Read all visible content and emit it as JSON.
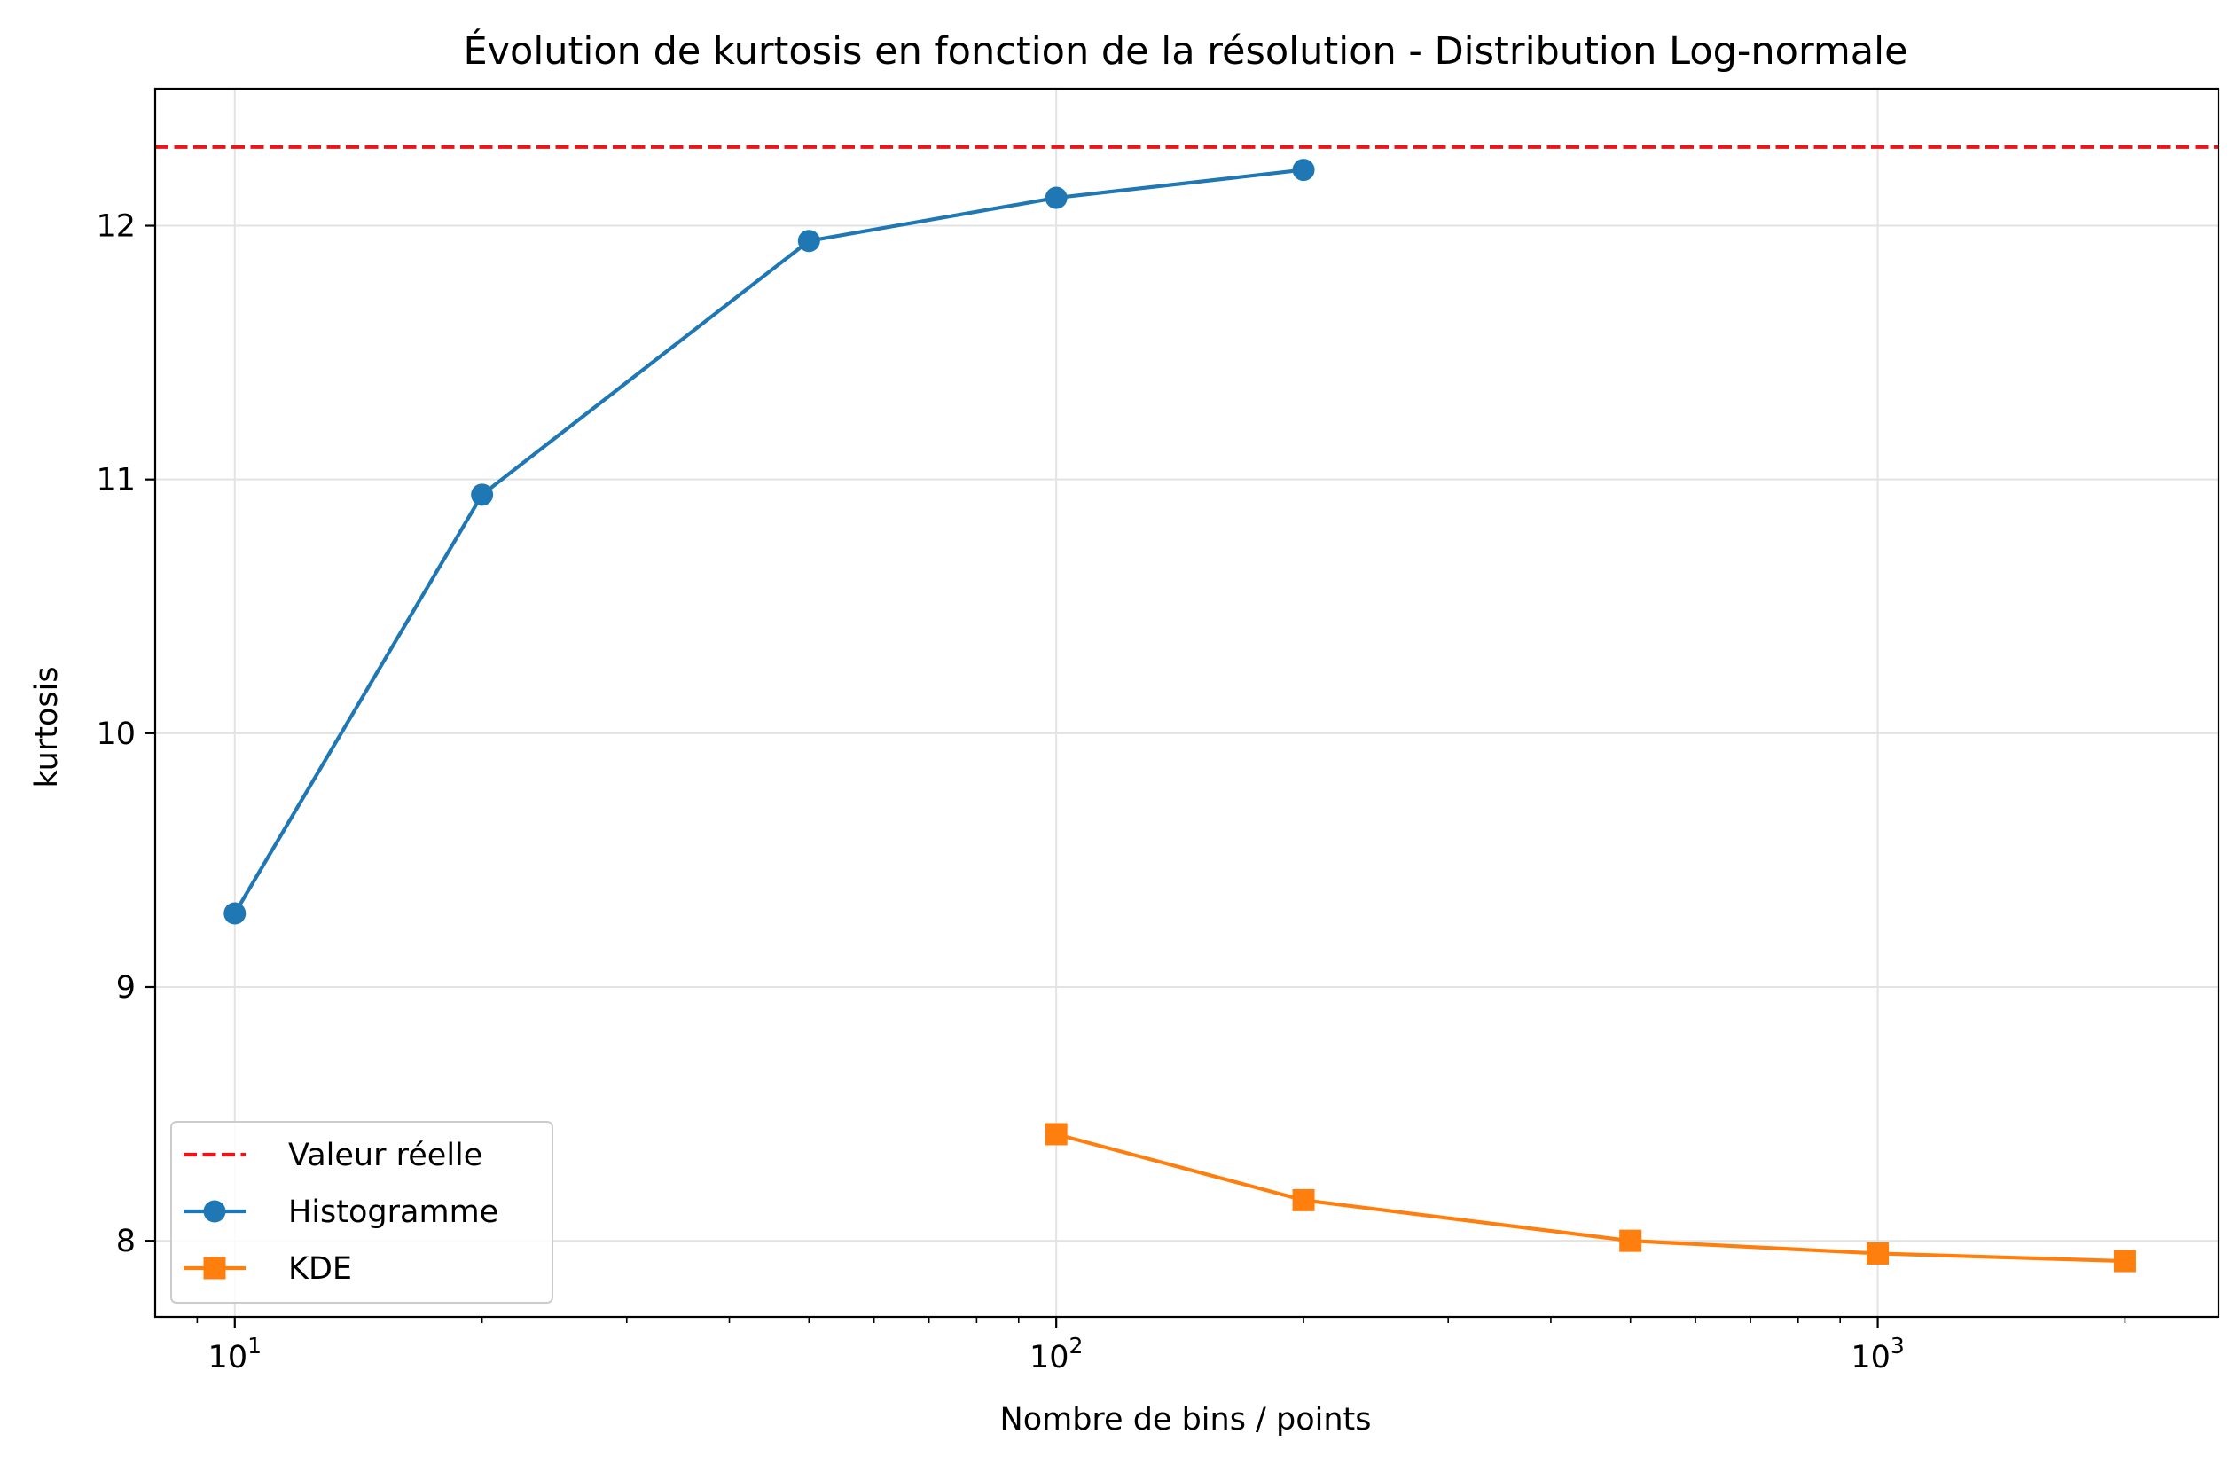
{
  "chart_data": {
    "type": "line",
    "title": "Évolution de kurtosis en fonction de la résolution - Distribution Log-normale",
    "xlabel": "Nombre de bins / points",
    "ylabel": "kurtosis",
    "xscale": "log",
    "xlim": [
      8.0,
      2600
    ],
    "ylim": [
      7.7,
      12.54
    ],
    "grid": true,
    "legend_position": "lower-left",
    "x_ticks": [
      {
        "value": 10,
        "base": "10",
        "exp": "1"
      },
      {
        "value": 100,
        "base": "10",
        "exp": "2"
      },
      {
        "value": 1000,
        "base": "10",
        "exp": "3"
      }
    ],
    "y_ticks": [
      {
        "value": 8,
        "label": "8"
      },
      {
        "value": 9,
        "label": "9"
      },
      {
        "value": 10,
        "label": "10"
      },
      {
        "value": 11,
        "label": "11"
      },
      {
        "value": 12,
        "label": "12"
      }
    ],
    "reference_line": {
      "name": "Valeur réelle",
      "y": 12.31,
      "color": "#e8161b",
      "style": "dashed"
    },
    "series": [
      {
        "name": "Histogramme",
        "color": "#1f77b4",
        "marker": "circle",
        "x": [
          10,
          20,
          50,
          100,
          200
        ],
        "y": [
          9.29,
          10.94,
          11.94,
          12.11,
          12.22
        ]
      },
      {
        "name": "KDE",
        "color": "#ff7f0e",
        "marker": "square",
        "x": [
          100,
          200,
          500,
          1000,
          2000
        ],
        "y": [
          8.42,
          8.16,
          8.0,
          7.95,
          7.92
        ]
      }
    ]
  }
}
